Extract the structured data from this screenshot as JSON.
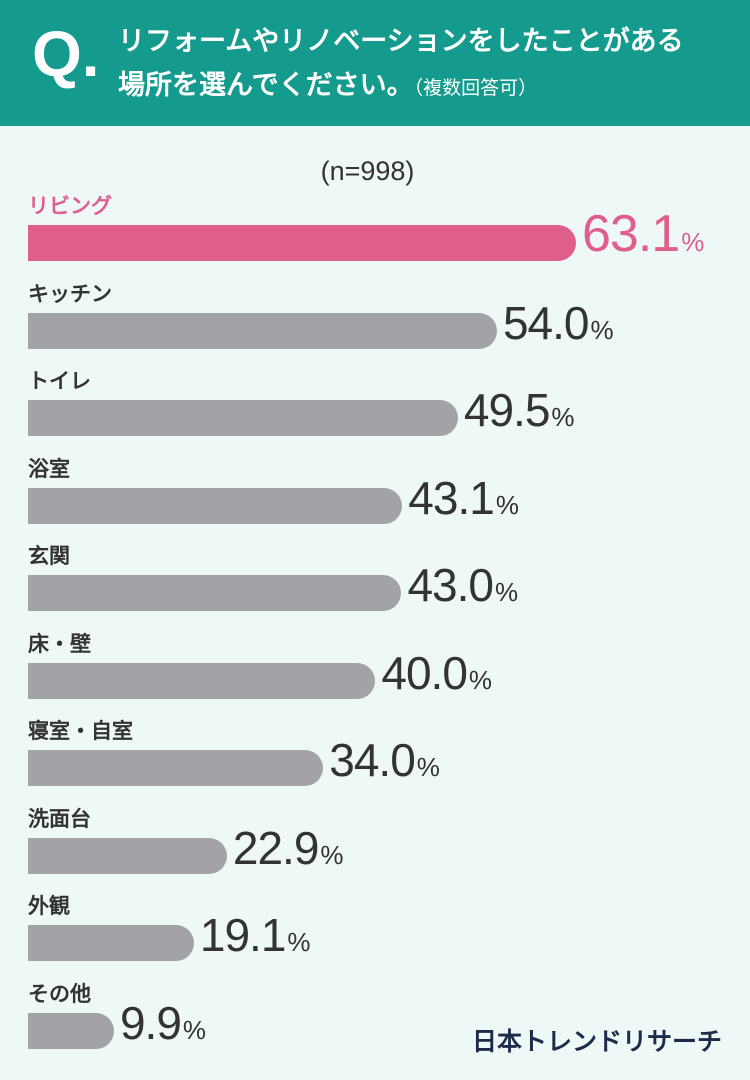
{
  "question": {
    "mark": "Q.",
    "line1": "リフォームやリノベーションをしたことがある",
    "line2": "場所を選んでください。",
    "note": "（複数回答可）"
  },
  "sample_size": "(n=998)",
  "logo": "日本トレンドリサーチ",
  "colors": {
    "header": "#159a8e",
    "highlight": "#e05f8a",
    "bar": "#a2a3a7",
    "background": "#eef8f7"
  },
  "chart_data": {
    "type": "bar",
    "orientation": "horizontal",
    "categories": [
      "リビング",
      "キッチン",
      "トイレ",
      "浴室",
      "玄関",
      "床・壁",
      "寝室・自室",
      "洗面台",
      "外観",
      "その他"
    ],
    "values": [
      63.1,
      54.0,
      49.5,
      43.1,
      43.0,
      40.0,
      34.0,
      22.9,
      19.1,
      9.9
    ],
    "value_labels": [
      "63.1",
      "54.0",
      "49.5",
      "43.1",
      "43.0",
      "40.0",
      "34.0",
      "22.9",
      "19.1",
      "9.9"
    ],
    "unit": "%",
    "highlight_index": 0,
    "xlim": [
      0,
      100
    ],
    "grid": false
  }
}
